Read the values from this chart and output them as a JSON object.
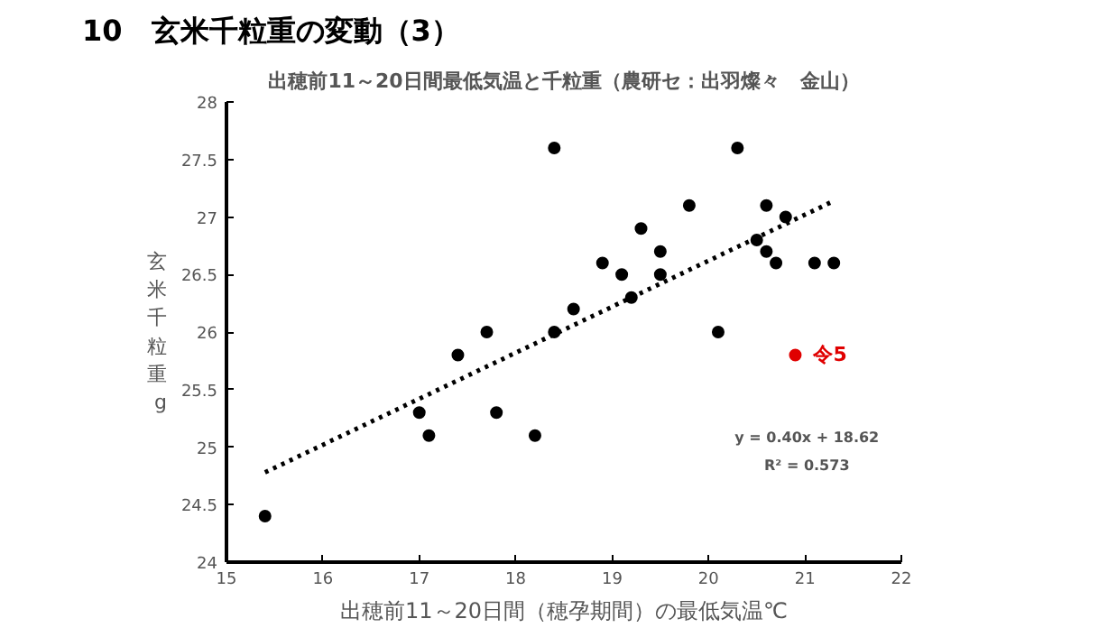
{
  "chart_data": {
    "type": "scatter",
    "title": "10　玄米千粒重の変動（3）",
    "subtitle": "出穂前11～20日間最低気温と千粒重（農研セ：出羽燦々　金山）",
    "xlabel": "出穂前11～20日間（穂孕期間）の最低気温℃",
    "ylabel": "玄米千粒重g",
    "series": [
      {
        "color": "#000000",
        "x": [
          15.4,
          17.0,
          17.1,
          17.4,
          17.7,
          17.8,
          18.2,
          18.4,
          18.4,
          18.6,
          18.9,
          19.1,
          19.2,
          19.3,
          19.5,
          19.5,
          19.8,
          20.1,
          20.3,
          20.5,
          20.6,
          20.6,
          20.7,
          20.8,
          21.1,
          21.3
        ],
        "values": [
          24.4,
          25.3,
          25.1,
          25.8,
          26.0,
          25.3,
          25.1,
          27.6,
          26.0,
          26.2,
          26.6,
          26.5,
          26.3,
          26.9,
          26.7,
          26.5,
          27.1,
          26.0,
          27.6,
          26.8,
          27.1,
          26.7,
          26.6,
          27.0,
          26.6,
          26.6
        ]
      },
      {
        "name": "令5",
        "color": "#e00000",
        "x": [
          20.9
        ],
        "values": [
          25.8
        ]
      },
      {
        "type": "line",
        "color": "#000000",
        "line_style": "dotted",
        "marker": "none",
        "x": [
          15.4,
          21.3
        ],
        "values": [
          24.78,
          27.14
        ]
      }
    ],
    "marker": "circle",
    "xlim": [
      15,
      22
    ],
    "ylim": [
      24,
      28
    ],
    "xticks": [
      15,
      16,
      17,
      18,
      19,
      20,
      21,
      22
    ],
    "yticks": [
      24,
      24.5,
      25,
      25.5,
      26,
      26.5,
      27,
      27.5,
      28
    ],
    "grid": false,
    "annotations": [
      "y = 0.40x + 18.62",
      "R² = 0.573"
    ]
  }
}
